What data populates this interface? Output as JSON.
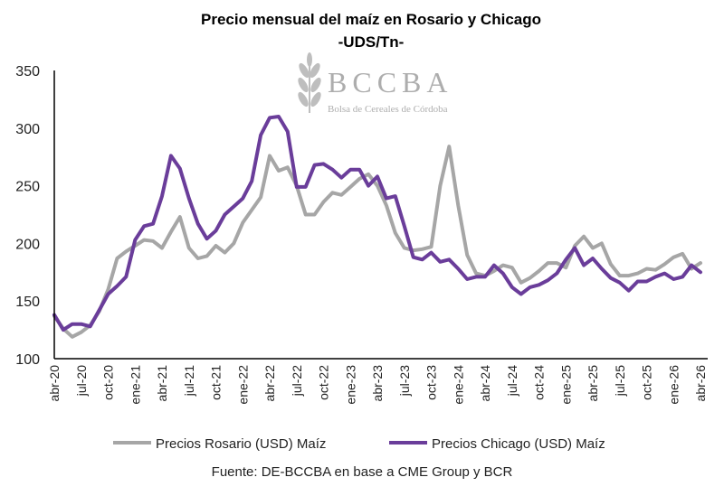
{
  "chart_data": {
    "type": "line",
    "title": "Precio mensual del maíz en Rosario y Chicago",
    "subtitle": "-UDS/Tn-",
    "xlabel": "",
    "ylabel": "",
    "ylim": [
      100,
      350
    ],
    "yticks": [
      100,
      150,
      200,
      250,
      300,
      350
    ],
    "grid": false,
    "legend_position": "bottom",
    "x_tick_labels": [
      "abr-20",
      "jul-20",
      "oct-20",
      "ene-21",
      "abr-21",
      "jul-21",
      "oct-21",
      "ene-22",
      "abr-22",
      "jul-22",
      "oct-22",
      "ene-23",
      "abr-23",
      "jul-23",
      "oct-23",
      "ene-24",
      "abr-24",
      "jul-24",
      "oct-24",
      "ene-25",
      "abr-25",
      "jul-25",
      "oct-25",
      "ene-26",
      "abr-26"
    ],
    "x_tick_every": 3,
    "series": [
      {
        "name": "Precios Rosario (USD) Maíz",
        "color": "#A6A6A6",
        "values": [
          137,
          126,
          119,
          123,
          129,
          141,
          160,
          187,
          193,
          198,
          203,
          202,
          196,
          210,
          223,
          196,
          187,
          189,
          198,
          192,
          200,
          218,
          229,
          240,
          276,
          263,
          266,
          250,
          225,
          225,
          236,
          244,
          242,
          249,
          256,
          260,
          250,
          233,
          209,
          196,
          194,
          195,
          197,
          250,
          284,
          233,
          190,
          174,
          172,
          176,
          181,
          179,
          166,
          170,
          176,
          183,
          183,
          179,
          198,
          206,
          196,
          200,
          182,
          172,
          172,
          174,
          178,
          177,
          182,
          188,
          191,
          178,
          183
        ]
      },
      {
        "name": "Precios Chicago (USD) Maíz",
        "color": "#6A3D9A",
        "values": [
          138,
          125,
          130,
          130,
          128,
          142,
          156,
          163,
          171,
          203,
          215,
          217,
          241,
          276,
          265,
          239,
          217,
          204,
          211,
          225,
          232,
          239,
          254,
          294,
          309,
          310,
          297,
          249,
          249,
          268,
          269,
          264,
          257,
          264,
          264,
          250,
          258,
          239,
          241,
          215,
          188,
          186,
          192,
          184,
          186,
          178,
          169,
          171,
          171,
          181,
          174,
          162,
          156,
          162,
          164,
          168,
          174,
          186,
          196,
          181,
          187,
          178,
          170,
          166,
          159,
          167,
          167,
          171,
          174,
          169,
          171,
          181,
          175
        ]
      }
    ]
  },
  "watermark": {
    "name": "BCCBA",
    "subtitle": "Bolsa de Cereales de Córdoba"
  },
  "source": "Fuente: DE-BCCBA en base a CME Group y BCR"
}
